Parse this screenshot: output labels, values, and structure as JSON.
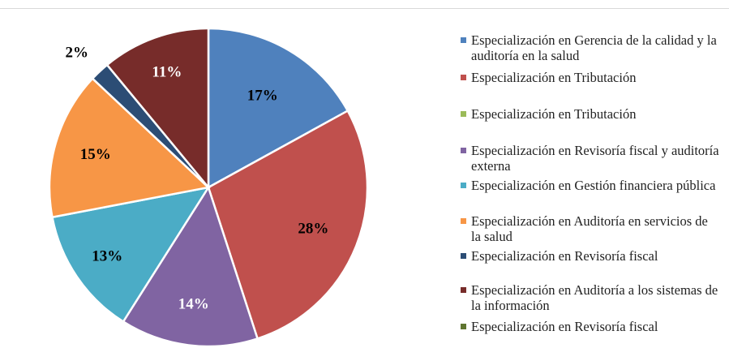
{
  "chart_data": {
    "type": "pie",
    "title": "",
    "legend_position": "right",
    "series": [
      {
        "name": "Especialización en Gerencia de la calidad y la auditoría en la salud",
        "value": 17,
        "label": "17%",
        "color": "#4F81BD"
      },
      {
        "name": "Especialización en Tributación",
        "value": 28,
        "label": "28%",
        "color": "#C0504D"
      },
      {
        "name": "Especialización en Tributación",
        "value": 0,
        "label": "",
        "color": "#9BBB59"
      },
      {
        "name": "Especialización en Revisoría fiscal y auditoría externa",
        "value": 14,
        "label": "14%",
        "color": "#8064A2"
      },
      {
        "name": "Especialización en Gestión financiera pública",
        "value": 13,
        "label": "13%",
        "color": "#4BACC6"
      },
      {
        "name": "Especialización en Auditoría en servicios de la salud",
        "value": 15,
        "label": "15%",
        "color": "#F79646"
      },
      {
        "name": "Especialización en Revisoría fiscal",
        "value": 2,
        "label": "2%",
        "color": "#2C4D75"
      },
      {
        "name": "Especialización en Auditoría a los sistemas de la información",
        "value": 11,
        "label": "11%",
        "color": "#772C2A"
      },
      {
        "name": "Especialización en Revisoría fiscal",
        "value": 0,
        "label": "",
        "color": "#5F7530"
      }
    ]
  }
}
